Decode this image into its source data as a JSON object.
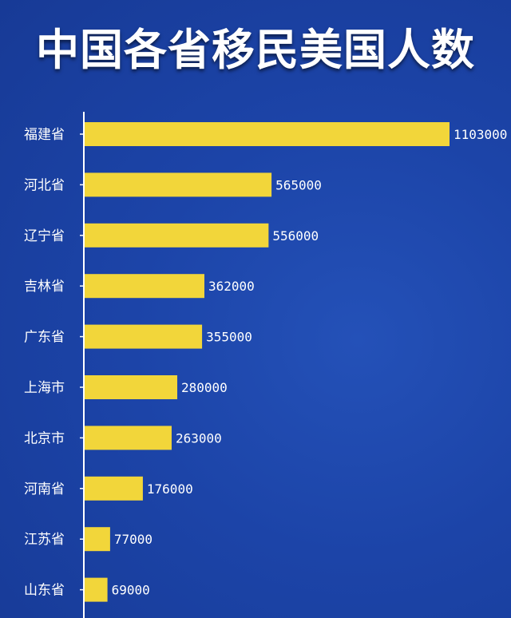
{
  "title": "中国各省移民美国人数",
  "colors": {
    "background": "#1c44a8",
    "bar": "#f2d63a",
    "axis": "#ffffff",
    "text": "#ffffff"
  },
  "chart_data": {
    "type": "bar",
    "orientation": "horizontal",
    "title": "中国各省移民美国人数",
    "categories": [
      "福建省",
      "河北省",
      "辽宁省",
      "吉林省",
      "广东省",
      "上海市",
      "北京市",
      "河南省",
      "江苏省",
      "山东省"
    ],
    "values": [
      1103000,
      565000,
      556000,
      362000,
      355000,
      280000,
      263000,
      176000,
      77000,
      69000
    ],
    "value_labels": [
      "1103000",
      "565000",
      "556000",
      "362000",
      "355000",
      "280000",
      "263000",
      "176000",
      "77000",
      "69000"
    ],
    "xlabel": "",
    "ylabel": "",
    "xlim": [
      0,
      1103000
    ],
    "grid": false,
    "legend": "none"
  }
}
